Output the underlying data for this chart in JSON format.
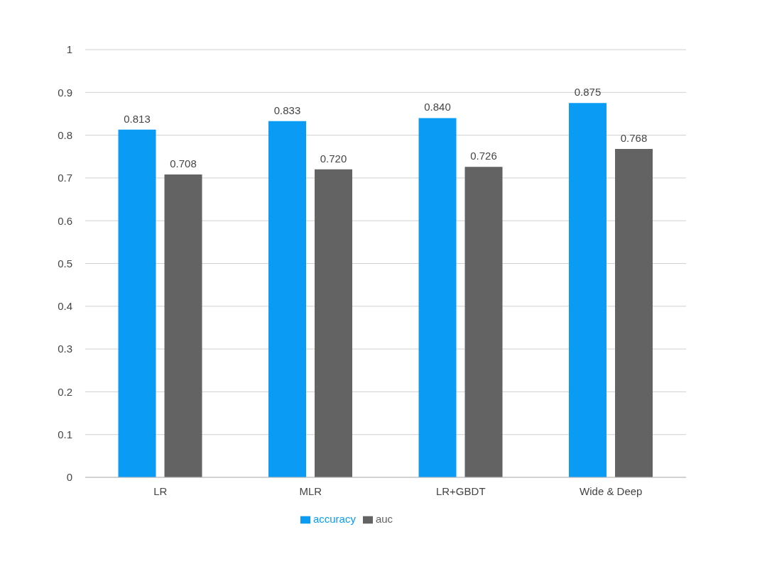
{
  "chart_data": {
    "type": "bar",
    "categories": [
      "LR",
      "MLR",
      "LR+GBDT",
      "Wide & Deep"
    ],
    "series": [
      {
        "name": "accuracy",
        "color": "#0a9cf5",
        "values": [
          0.813,
          0.833,
          0.84,
          0.875
        ],
        "value_labels": [
          "0.813",
          "0.833",
          "0.840",
          "0.875"
        ]
      },
      {
        "name": "auc",
        "color": "#636363",
        "values": [
          0.708,
          0.72,
          0.726,
          0.768
        ],
        "value_labels": [
          "0.708",
          "0.720",
          "0.726",
          "0.768"
        ]
      }
    ],
    "ylim": [
      0,
      1
    ],
    "yticks": [
      0,
      0.1,
      0.2,
      0.3,
      0.4,
      0.5,
      0.6,
      0.7,
      0.8,
      0.9,
      1
    ],
    "grid": "y",
    "legend": "bottom"
  }
}
